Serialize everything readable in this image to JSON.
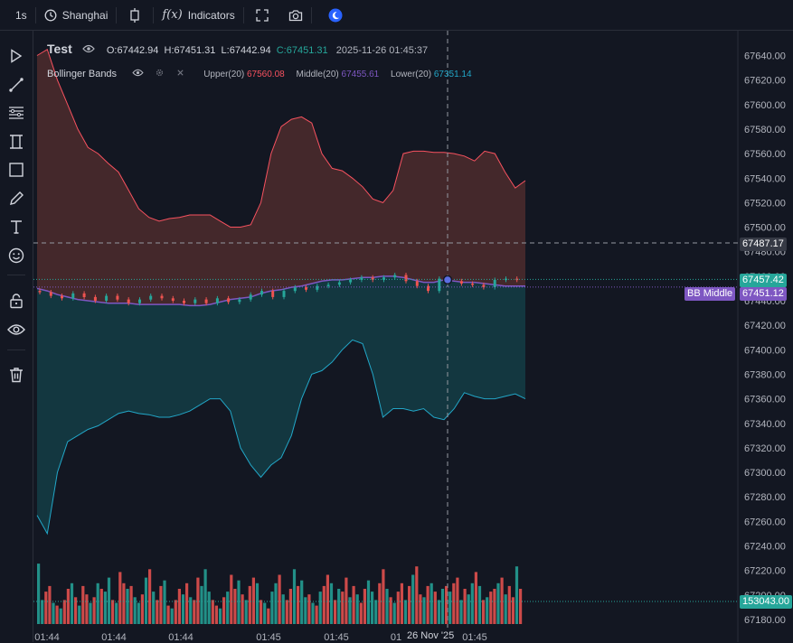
{
  "toolbar": {
    "interval": "1s",
    "timezone": "Shanghai",
    "indicators_label": "Indicators",
    "fx_label": "f(x)"
  },
  "legend": {
    "symbol": "Test",
    "open_label": "O:",
    "open": "67442.94",
    "high_label": "H:",
    "high": "67451.31",
    "low_label": "L:",
    "low": "67442.94",
    "close_label": "C:",
    "close": "67451.31",
    "timestamp": "2025-11-26 01:45:37"
  },
  "indicator": {
    "name": "Bollinger Bands",
    "upper_label": "Upper(20)",
    "upper": "67560.08",
    "middle_label": "Middle(20)",
    "middle": "67455.61",
    "lower_label": "Lower(20)",
    "lower": "67351.14"
  },
  "price_axis": {
    "ticks": [
      "67640.00",
      "67620.00",
      "67600.00",
      "67580.00",
      "67560.00",
      "67540.00",
      "67520.00",
      "67500.00",
      "67480.00",
      "67460.00",
      "67440.00",
      "67420.00",
      "67400.00",
      "67380.00",
      "67360.00",
      "67340.00",
      "67320.00",
      "67300.00",
      "67280.00",
      "67260.00",
      "67240.00",
      "67220.00",
      "67200.00",
      "67180.00"
    ],
    "crosshair_price": "67487.17",
    "last_price": "67457.42",
    "bb_middle_label": "BB Middle",
    "bb_middle_value": "67451.12",
    "volume_value": "153043.00"
  },
  "time_axis": {
    "ticks": [
      "01:44",
      "01:44",
      "01:44",
      "01:45",
      "01:45",
      "01",
      "01:45"
    ],
    "crosshair_date": "26 Nov '25"
  },
  "colors": {
    "background": "#131722",
    "up": "#26a69a",
    "down": "#ef5350",
    "upper_band": "#f7525f",
    "middle_band": "#7e57c2",
    "lower_band": "#22a7c8",
    "upper_fill": "#4a2a2c",
    "lower_fill": "#143b44"
  },
  "chart_data": {
    "type": "candlestick",
    "price_range": [
      67175,
      67650
    ],
    "bollinger": {
      "upper": [
        67640,
        67645,
        67620,
        67600,
        67580,
        67565,
        67560,
        67552,
        67545,
        67530,
        67515,
        67508,
        67505,
        67507,
        67508,
        67510,
        67510,
        67510,
        67505,
        67500,
        67500,
        67502,
        67520,
        67560,
        67582,
        67588,
        67590,
        67585,
        67560,
        67548,
        67546,
        67540,
        67533,
        67523,
        67520,
        67530,
        67560,
        67562,
        67562,
        67561,
        67561,
        67560,
        67558,
        67554,
        67562,
        67560,
        67545,
        67532,
        67538
      ],
      "middle": [
        67450,
        67448,
        67445,
        67443,
        67441,
        67440,
        67439,
        67438,
        67438,
        67438,
        67437,
        67437,
        67437,
        67437,
        67437,
        67436,
        67436,
        67437,
        67439,
        67441,
        67442,
        67443,
        67446,
        67448,
        67449,
        67451,
        67452,
        67454,
        67456,
        67457,
        67457,
        67458,
        67459,
        67459,
        67460,
        67460,
        67459,
        67457,
        67455,
        67455,
        67457,
        67456,
        67455,
        67455,
        67454,
        67453,
        67452,
        67452,
        67452
      ],
      "lower": [
        67265,
        67250,
        67300,
        67325,
        67330,
        67335,
        67338,
        67343,
        67348,
        67350,
        67348,
        67347,
        67345,
        67345,
        67347,
        67350,
        67355,
        67360,
        67360,
        67350,
        67320,
        67306,
        67296,
        67306,
        67312,
        67330,
        67360,
        67380,
        67383,
        67390,
        67400,
        67408,
        67405,
        67380,
        67345,
        67352,
        67352,
        67350,
        67352,
        67345,
        67343,
        67352,
        67365,
        67362,
        67360,
        67360,
        67362,
        67364,
        67360
      ]
    },
    "candles": [
      67447,
      67444,
      67442,
      67446,
      67443,
      67440,
      67444,
      67441,
      67438,
      67441,
      67444,
      67442,
      67440,
      67438,
      67441,
      67438,
      67442,
      67439,
      67441,
      67445,
      67448,
      67443,
      67448,
      67451,
      67449,
      67452,
      67453,
      67455,
      67457,
      67459,
      67457,
      67459,
      67461,
      67456,
      67452,
      67448,
      67458,
      67456,
      67454,
      67453,
      67451,
      67457,
      67458,
      67457
    ],
    "volume_last": 153043
  }
}
